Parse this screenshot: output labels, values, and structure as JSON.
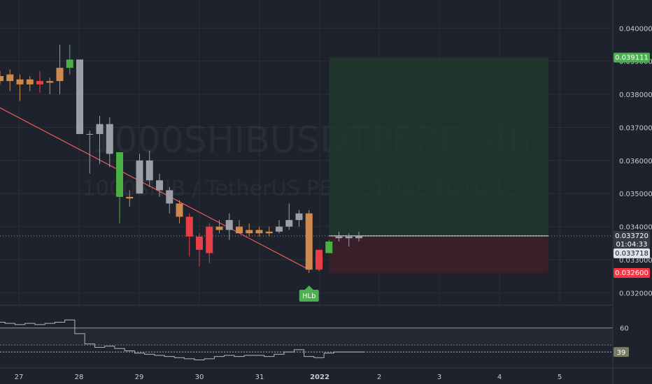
{
  "watermark": {
    "symbol": "1000SHIBUSDTPERP, 4h",
    "description": "1000SHIB / TetherUS PERPETUAL FUTURES"
  },
  "colors": {
    "background": "#1e222d",
    "bull_candle": "#cd8a4c",
    "bear_candle": "#e83e48",
    "neutral_candle": "#9e9ea6",
    "green_candle": "#49b041",
    "trendline": "#f05a5a",
    "target_zone": "#1f3a2d",
    "stop_zone": "#3d1f2a",
    "price_line": "#ffffff",
    "tag_green": "#4caf50",
    "tag_red": "#f23645",
    "oscillator_line": "#b2b5be"
  },
  "chart_data": {
    "type": "candlestick",
    "timeframe": "4h",
    "x_ticks": [
      "27",
      "28",
      "29",
      "30",
      "31",
      "2022",
      "2",
      "3",
      "4",
      "5"
    ],
    "y_ticks": [
      "0.040000",
      "0.039000",
      "0.038000",
      "0.037000",
      "0.036000",
      "0.035000",
      "0.034000",
      "0.033000",
      "0.032000"
    ],
    "ylim": [
      0.03165,
      0.04085
    ],
    "candles": [
      {
        "o": 0.03855,
        "h": 0.0387,
        "l": 0.0383,
        "c": 0.0384,
        "color": "bull"
      },
      {
        "o": 0.0384,
        "h": 0.03875,
        "l": 0.0381,
        "c": 0.0386,
        "color": "bull"
      },
      {
        "o": 0.03845,
        "h": 0.0386,
        "l": 0.0378,
        "c": 0.0383,
        "color": "bull"
      },
      {
        "o": 0.03845,
        "h": 0.03855,
        "l": 0.0381,
        "c": 0.0383,
        "color": "bull"
      },
      {
        "o": 0.0384,
        "h": 0.0387,
        "l": 0.03805,
        "c": 0.0383,
        "color": "bear"
      },
      {
        "o": 0.03835,
        "h": 0.0385,
        "l": 0.038,
        "c": 0.0384,
        "color": "bull"
      },
      {
        "o": 0.0384,
        "h": 0.0395,
        "l": 0.038,
        "c": 0.0388,
        "color": "bull"
      },
      {
        "o": 0.0388,
        "h": 0.0395,
        "l": 0.0386,
        "c": 0.03905,
        "color": "green"
      },
      {
        "o": 0.03905,
        "h": 0.03905,
        "l": 0.0368,
        "c": 0.0368,
        "color": "neutral"
      },
      {
        "o": 0.0368,
        "h": 0.0369,
        "l": 0.0356,
        "c": 0.0368,
        "color": "neutral"
      },
      {
        "o": 0.0368,
        "h": 0.03735,
        "l": 0.0359,
        "c": 0.0371,
        "color": "neutral"
      },
      {
        "o": 0.0371,
        "h": 0.0373,
        "l": 0.0358,
        "c": 0.0362,
        "color": "neutral"
      },
      {
        "o": 0.0349,
        "h": 0.0362,
        "l": 0.0341,
        "c": 0.03625,
        "color": "green"
      },
      {
        "o": 0.0349,
        "h": 0.0351,
        "l": 0.0346,
        "c": 0.03485,
        "color": "bull"
      },
      {
        "o": 0.035,
        "h": 0.0362,
        "l": 0.035,
        "c": 0.036,
        "color": "neutral"
      },
      {
        "o": 0.036,
        "h": 0.0363,
        "l": 0.0352,
        "c": 0.0354,
        "color": "neutral"
      },
      {
        "o": 0.0354,
        "h": 0.0356,
        "l": 0.0349,
        "c": 0.0351,
        "color": "neutral"
      },
      {
        "o": 0.0351,
        "h": 0.0352,
        "l": 0.0344,
        "c": 0.0347,
        "color": "neutral"
      },
      {
        "o": 0.0347,
        "h": 0.0348,
        "l": 0.0341,
        "c": 0.0343,
        "color": "bull"
      },
      {
        "o": 0.0343,
        "h": 0.0344,
        "l": 0.0331,
        "c": 0.0337,
        "color": "bear"
      },
      {
        "o": 0.0337,
        "h": 0.0338,
        "l": 0.0328,
        "c": 0.0333,
        "color": "bear"
      },
      {
        "o": 0.0332,
        "h": 0.0341,
        "l": 0.0329,
        "c": 0.034,
        "color": "bear"
      },
      {
        "o": 0.034,
        "h": 0.0342,
        "l": 0.0338,
        "c": 0.0339,
        "color": "bull"
      },
      {
        "o": 0.0339,
        "h": 0.0344,
        "l": 0.0336,
        "c": 0.0342,
        "color": "neutral"
      },
      {
        "o": 0.034,
        "h": 0.0342,
        "l": 0.0338,
        "c": 0.0338,
        "color": "bull"
      },
      {
        "o": 0.0338,
        "h": 0.0341,
        "l": 0.0337,
        "c": 0.0339,
        "color": "bull"
      },
      {
        "o": 0.0339,
        "h": 0.034,
        "l": 0.0337,
        "c": 0.0338,
        "color": "bull"
      },
      {
        "o": 0.0338,
        "h": 0.034,
        "l": 0.0337,
        "c": 0.03385,
        "color": "bull"
      },
      {
        "o": 0.03385,
        "h": 0.0342,
        "l": 0.0338,
        "c": 0.034,
        "color": "neutral"
      },
      {
        "o": 0.034,
        "h": 0.0347,
        "l": 0.0339,
        "c": 0.0342,
        "color": "neutral"
      },
      {
        "o": 0.0342,
        "h": 0.0345,
        "l": 0.034,
        "c": 0.0344,
        "color": "neutral"
      },
      {
        "o": 0.0344,
        "h": 0.0345,
        "l": 0.0326,
        "c": 0.0327,
        "color": "bull"
      },
      {
        "o": 0.0327,
        "h": 0.0333,
        "l": 0.03265,
        "c": 0.0333,
        "color": "bear"
      },
      {
        "o": 0.0332,
        "h": 0.0336,
        "l": 0.0332,
        "c": 0.03355,
        "color": "green"
      },
      {
        "o": 0.03365,
        "h": 0.03385,
        "l": 0.03355,
        "c": 0.0337,
        "color": "neutral"
      },
      {
        "o": 0.0337,
        "h": 0.0338,
        "l": 0.0334,
        "c": 0.03365,
        "color": "neutral"
      },
      {
        "o": 0.03365,
        "h": 0.03385,
        "l": 0.03355,
        "c": 0.03372,
        "color": "neutral"
      }
    ],
    "trendline": {
      "from": {
        "index": -1.0,
        "price": 0.03775
      },
      "to": {
        "index": 31.0,
        "price": 0.0327
      }
    },
    "position": {
      "entry": 0.03372,
      "target": 0.03911,
      "stop": 0.0326,
      "from_index": 33.0,
      "to_index": 55.0
    },
    "price_tags": {
      "target": "0.039111",
      "current": "0.033720",
      "countdown": "01:04:33",
      "line": "0.033718",
      "stop": "0.032600"
    },
    "pattern_label": {
      "text": "HLb",
      "index": 31.0
    },
    "oscillator": {
      "ylim": [
        25,
        80
      ],
      "levels": [
        60,
        45
      ],
      "current": 39,
      "current_label": "39",
      "level_label": "60",
      "values": [
        65,
        64,
        63,
        64,
        63,
        64,
        65,
        67,
        55,
        46,
        43,
        44,
        42,
        40,
        38,
        37,
        36,
        35,
        34,
        33,
        32,
        33,
        35,
        36,
        35,
        36,
        36,
        35,
        37,
        39,
        41,
        35,
        34,
        38,
        39,
        39,
        39
      ]
    }
  }
}
